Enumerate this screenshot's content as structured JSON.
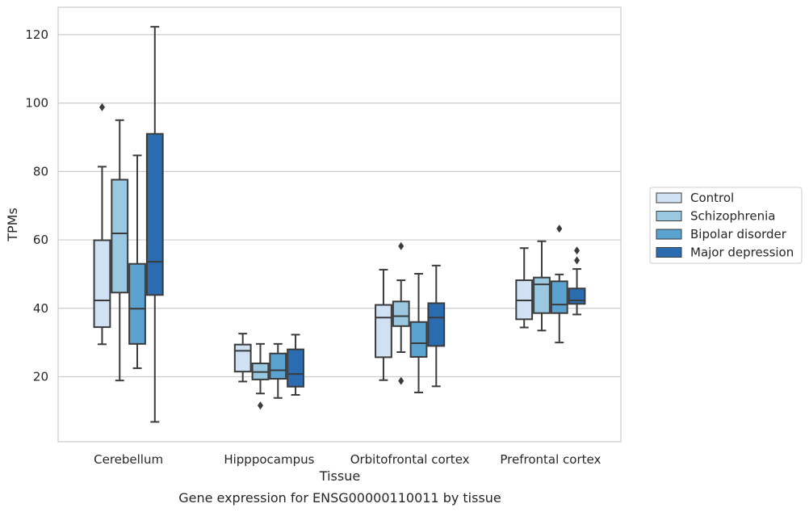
{
  "chart_data": {
    "type": "box",
    "xlabel": "Tissue",
    "ylabel": "TPMs",
    "caption": "Gene expression for ENSG00000110011 by tissue",
    "ylim": [
      1,
      128
    ],
    "yticks": [
      20,
      40,
      60,
      80,
      100,
      120
    ],
    "grid": "horizontal",
    "legend_position": "right",
    "categories": [
      "Cerebellum",
      "Hipppocampus",
      "Orbitofrontal cortex",
      "Prefrontal cortex"
    ],
    "series": [
      {
        "name": "Control",
        "color": "#cfe1f2",
        "boxes": [
          {
            "whisker_low": 29.5,
            "q1": 34.5,
            "median": 42.3,
            "q3": 59.9,
            "whisker_high": 81.4,
            "outliers": [
              98.8
            ]
          },
          {
            "whisker_low": 18.6,
            "q1": 21.5,
            "median": 27.6,
            "q3": 29.4,
            "whisker_high": 32.6,
            "outliers": []
          },
          {
            "whisker_low": 19.0,
            "q1": 25.7,
            "median": 37.3,
            "q3": 41.0,
            "whisker_high": 51.3,
            "outliers": []
          },
          {
            "whisker_low": 34.4,
            "q1": 36.8,
            "median": 42.3,
            "q3": 48.2,
            "whisker_high": 57.6,
            "outliers": []
          }
        ]
      },
      {
        "name": "Schizophrenia",
        "color": "#9ac8e0",
        "boxes": [
          {
            "whisker_low": 18.9,
            "q1": 44.6,
            "median": 61.9,
            "q3": 77.6,
            "whisker_high": 95.0,
            "outliers": []
          },
          {
            "whisker_low": 15.1,
            "q1": 19.2,
            "median": 21.4,
            "q3": 23.9,
            "whisker_high": 29.6,
            "outliers": [
              11.6
            ]
          },
          {
            "whisker_low": 27.2,
            "q1": 34.8,
            "median": 37.7,
            "q3": 42.0,
            "whisker_high": 48.2,
            "outliers": [
              18.8,
              58.2
            ]
          },
          {
            "whisker_low": 33.5,
            "q1": 38.6,
            "median": 47.0,
            "q3": 49.0,
            "whisker_high": 59.6,
            "outliers": []
          }
        ]
      },
      {
        "name": "Bipolar disorder",
        "color": "#5aa2cf",
        "boxes": [
          {
            "whisker_low": 22.5,
            "q1": 29.6,
            "median": 39.9,
            "q3": 53.0,
            "whisker_high": 84.7,
            "outliers": []
          },
          {
            "whisker_low": 13.8,
            "q1": 19.4,
            "median": 21.9,
            "q3": 26.8,
            "whisker_high": 29.6,
            "outliers": []
          },
          {
            "whisker_low": 15.4,
            "q1": 25.8,
            "median": 29.8,
            "q3": 36.0,
            "whisker_high": 50.1,
            "outliers": []
          },
          {
            "whisker_low": 30.0,
            "q1": 38.6,
            "median": 41.1,
            "q3": 47.9,
            "whisker_high": 49.9,
            "outliers": [
              63.3
            ]
          }
        ]
      },
      {
        "name": "Major depression",
        "color": "#2b6cb0",
        "boxes": [
          {
            "whisker_low": 6.8,
            "q1": 43.9,
            "median": 53.6,
            "q3": 91.0,
            "whisker_high": 122.3,
            "outliers": []
          },
          {
            "whisker_low": 14.7,
            "q1": 17.1,
            "median": 20.8,
            "q3": 28.0,
            "whisker_high": 32.3,
            "outliers": []
          },
          {
            "whisker_low": 17.2,
            "q1": 29.0,
            "median": 37.3,
            "q3": 41.5,
            "whisker_high": 52.5,
            "outliers": []
          },
          {
            "whisker_low": 38.2,
            "q1": 41.3,
            "median": 42.3,
            "q3": 45.8,
            "whisker_high": 51.5,
            "outliers": [
              54.0,
              56.9
            ]
          }
        ]
      }
    ]
  }
}
